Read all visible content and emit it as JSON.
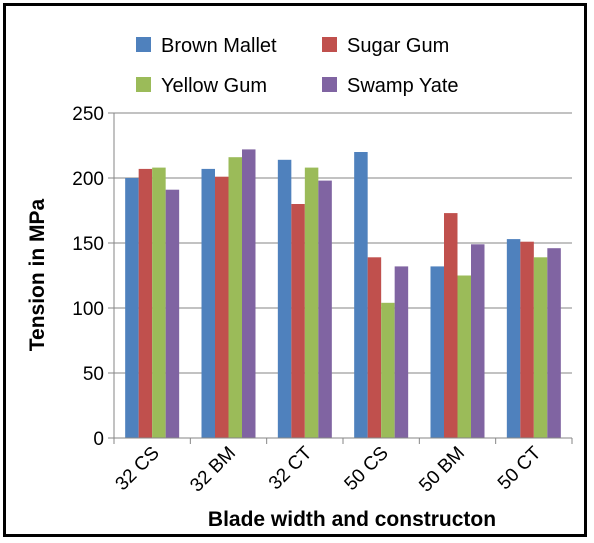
{
  "chart_data": {
    "type": "bar",
    "title": "",
    "xlabel": "Blade width and constructon",
    "ylabel": "Tension in MPa",
    "categories": [
      "32 CS",
      "32 BM",
      "32 CT",
      "50 CS",
      "50 BM",
      "50 CT"
    ],
    "series": [
      {
        "name": "Brown Mallet",
        "color": "#4F81BD",
        "values": [
          200,
          207,
          214,
          220,
          132,
          153
        ]
      },
      {
        "name": "Sugar Gum",
        "color": "#C0504D",
        "values": [
          207,
          201,
          180,
          139,
          173,
          151
        ]
      },
      {
        "name": "Yellow Gum",
        "color": "#9BBB59",
        "values": [
          208,
          216,
          208,
          104,
          125,
          139
        ]
      },
      {
        "name": "Swamp Yate",
        "color": "#8064A2",
        "values": [
          191,
          222,
          198,
          132,
          149,
          146
        ]
      }
    ],
    "ylim": [
      0,
      250
    ],
    "yticks": [
      0,
      50,
      100,
      150,
      200,
      250
    ],
    "grid": true,
    "legend_position": "top"
  }
}
